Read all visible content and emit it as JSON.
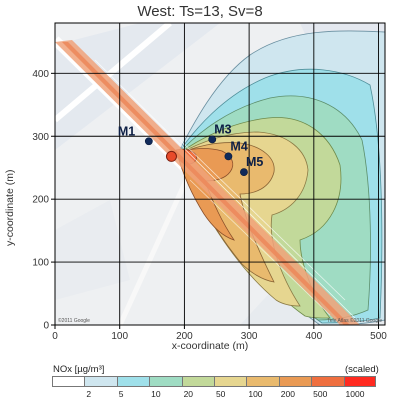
{
  "chart_data": {
    "type": "heatmap",
    "title": "West: Ts=13, Sv=8",
    "xlabel": "x-coordinate (m)",
    "ylabel": "y-coordinate (m)",
    "xlim": [
      0,
      510
    ],
    "ylim": [
      0,
      480
    ],
    "xticks": [
      0,
      100,
      200,
      300,
      400,
      500
    ],
    "yticks": [
      0,
      100,
      200,
      300,
      400
    ],
    "grid": true,
    "points": [
      {
        "label": "M1",
        "x": 145,
        "y": 292
      },
      {
        "label": "M3",
        "x": 243,
        "y": 295
      },
      {
        "label": "M4",
        "x": 268,
        "y": 268
      },
      {
        "label": "M5",
        "x": 292,
        "y": 243
      }
    ],
    "source": {
      "x": 180,
      "y": 268
    },
    "legend": {
      "title": "NOx [µg/m³]",
      "note": "(scaled)",
      "bins": [
        {
          "tick": "",
          "color": "#ffffff"
        },
        {
          "tick": "2",
          "color": "#cfe6ef"
        },
        {
          "tick": "5",
          "color": "#9fe0ea"
        },
        {
          "tick": "10",
          "color": "#9fdcc3"
        },
        {
          "tick": "20",
          "color": "#c2d99a"
        },
        {
          "tick": "50",
          "color": "#e6d690"
        },
        {
          "tick": "100",
          "color": "#e9ba6e"
        },
        {
          "tick": "200",
          "color": "#e99a54"
        },
        {
          "tick": "500",
          "color": "#ef6f3f"
        },
        {
          "tick": "1000",
          "color": "#ff2a20"
        }
      ]
    },
    "map_credit_left": "©2011 Google",
    "map_credit_right": "Tele Atlas ©2011 Google"
  }
}
